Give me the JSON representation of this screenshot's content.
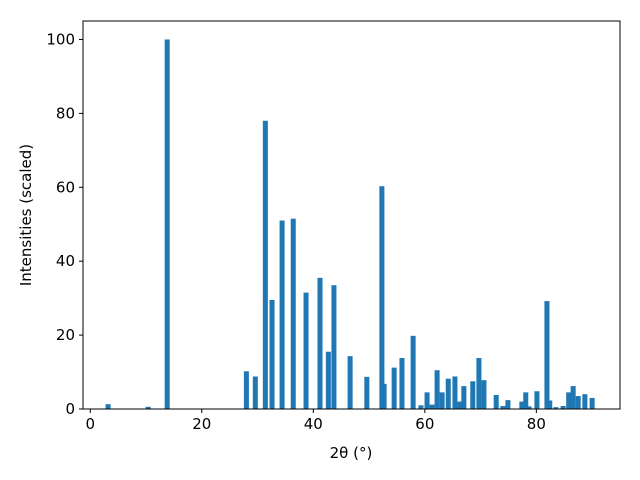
{
  "chart_data": {
    "type": "bar",
    "xlabel": "2θ (°)",
    "ylabel": "Intensities (scaled)",
    "color": "#1f77b4",
    "x": [
      3.2,
      10.4,
      13.8,
      28.0,
      29.6,
      31.4,
      32.6,
      34.4,
      36.4,
      38.7,
      41.2,
      42.7,
      43.7,
      46.6,
      49.6,
      52.3,
      52.7,
      54.5,
      55.9,
      57.9,
      59.3,
      60.4,
      61.3,
      62.2,
      63.1,
      64.2,
      65.4,
      66.3,
      67.0,
      68.6,
      69.7,
      70.6,
      72.8,
      74.0,
      74.9,
      77.4,
      78.1,
      78.7,
      80.1,
      81.9,
      82.4,
      83.5,
      84.8,
      85.8,
      86.6,
      87.5,
      88.7,
      90.0
    ],
    "values": [
      1.3,
      0.6,
      100,
      10.2,
      8.8,
      78,
      29.5,
      51,
      51.5,
      31.5,
      35.5,
      15.5,
      33.5,
      14.3,
      8.7,
      60.3,
      6.8,
      11.2,
      13.8,
      19.8,
      1,
      4.5,
      1.2,
      10.5,
      4.5,
      8.2,
      8.8,
      2,
      6.2,
      7.5,
      13.8,
      7.8,
      3.8,
      0.8,
      2.4,
      2,
      4.5,
      0.7,
      4.8,
      29.2,
      2.3,
      0.5,
      0.8,
      4.5,
      6.2,
      3.5,
      4,
      3
    ],
    "xlim": [
      -1.3,
      95
    ],
    "ylim": [
      0,
      105
    ],
    "xticks": [
      0,
      20,
      40,
      60,
      80
    ],
    "yticks": [
      0,
      20,
      40,
      60,
      80,
      100
    ]
  }
}
